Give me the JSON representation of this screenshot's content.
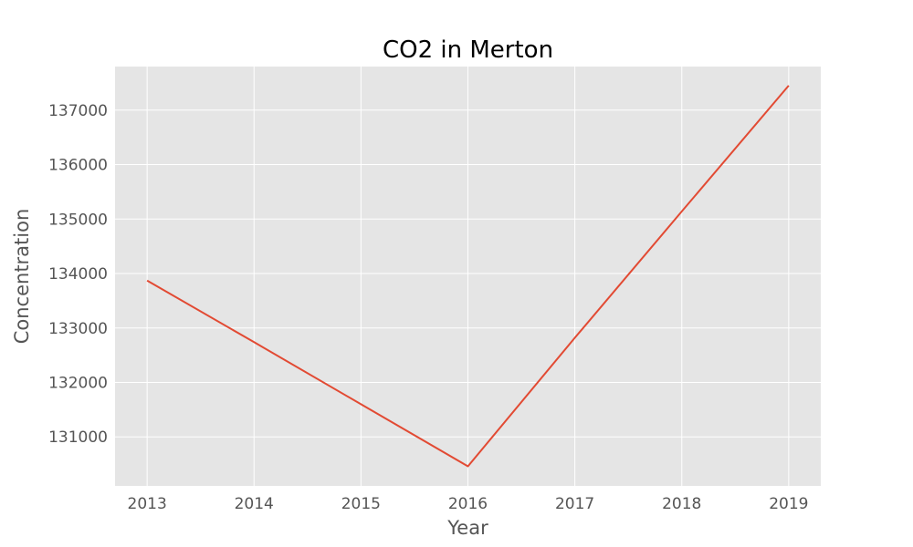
{
  "chart_data": {
    "type": "line",
    "title": "CO2 in Merton",
    "xlabel": "Year",
    "ylabel": "Concentration",
    "x": [
      2013,
      2014,
      2015,
      2016,
      2017,
      2018,
      2019
    ],
    "series": [
      {
        "values": [
          133870,
          132740,
          131600,
          130460,
          132820,
          135140,
          137450
        ]
      }
    ],
    "xlim": [
      2012.7,
      2019.3
    ],
    "ylim": [
      130100,
      137800
    ],
    "x_ticks": [
      "2013",
      "2014",
      "2015",
      "2016",
      "2017",
      "2018",
      "2019"
    ],
    "y_ticks": [
      "131000",
      "132000",
      "133000",
      "134000",
      "135000",
      "136000",
      "137000"
    ],
    "grid": true,
    "legend": "none",
    "colors": {
      "line": "#E24A33",
      "plot_background": "#E5E5E5",
      "grid": "#FFFFFF",
      "text": "#555555"
    }
  }
}
